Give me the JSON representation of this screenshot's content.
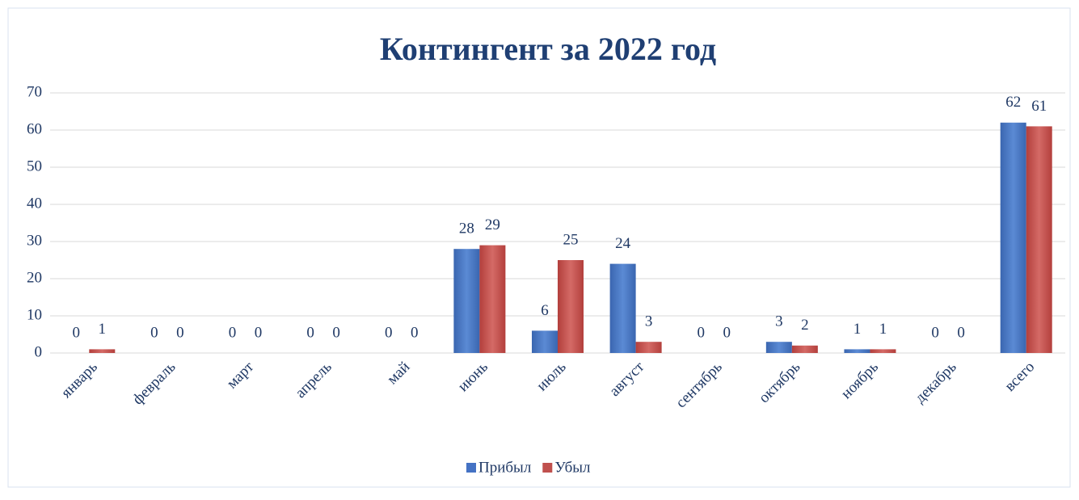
{
  "chart_data": {
    "type": "bar",
    "title": "Контингент за 2022 год",
    "categories": [
      "январь",
      "февраль",
      "март",
      "апрель",
      "май",
      "июнь",
      "июль",
      "август",
      "сентябрь",
      "октябрь",
      "ноябрь",
      "декабрь",
      "всего"
    ],
    "series": [
      {
        "name": "Прибыл",
        "color": "#4472c4",
        "values": [
          0,
          0,
          0,
          0,
          0,
          28,
          6,
          24,
          0,
          3,
          1,
          0,
          62
        ]
      },
      {
        "name": "Убыл",
        "color": "#c0504d",
        "values": [
          1,
          0,
          0,
          0,
          0,
          29,
          25,
          3,
          0,
          2,
          1,
          0,
          61
        ]
      }
    ],
    "ylim": [
      0,
      70
    ],
    "yticks": [
      0,
      10,
      20,
      30,
      40,
      50,
      60,
      70
    ],
    "grid": true,
    "legend": "bottom"
  }
}
